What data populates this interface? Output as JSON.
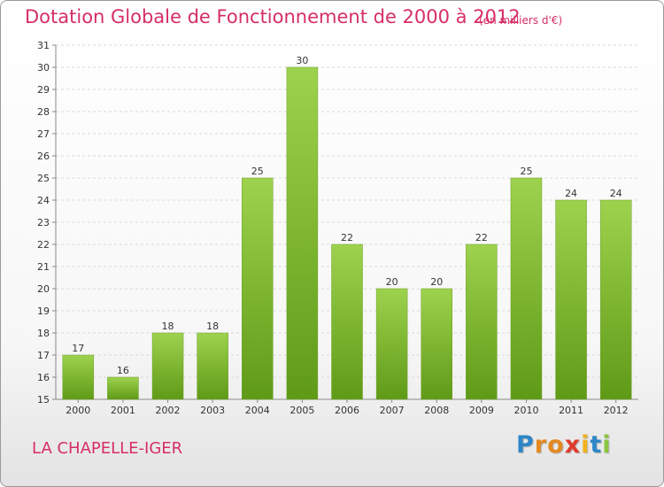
{
  "chart_data": {
    "type": "bar",
    "title": "Dotation Globale de Fonctionnement de 2000 à 2012",
    "subtitle": "(en milliers d'€)",
    "categories": [
      "2000",
      "2001",
      "2002",
      "2003",
      "2004",
      "2005",
      "2006",
      "2007",
      "2008",
      "2009",
      "2010",
      "2011",
      "2012"
    ],
    "values": [
      17,
      16,
      18,
      18,
      25,
      30,
      22,
      20,
      20,
      22,
      25,
      24,
      24
    ],
    "ylim": [
      15,
      31
    ],
    "yticks": [
      15,
      16,
      17,
      18,
      19,
      20,
      21,
      22,
      23,
      24,
      25,
      26,
      27,
      28,
      29,
      30,
      31
    ],
    "grid": true,
    "bar_color_top": "#9dd24e",
    "bar_color_bottom": "#5f9a16"
  },
  "footer": {
    "commune": "LA CHAPELLE-IGER",
    "logo_letters": [
      "P",
      "r",
      "o",
      "x",
      "i",
      "t",
      "i"
    ],
    "logo_colors": [
      "#2e86c8",
      "#e5891f",
      "#e5891f",
      "#e03a2c",
      "#f2b21c",
      "#2e86c8",
      "#8bc540"
    ]
  }
}
